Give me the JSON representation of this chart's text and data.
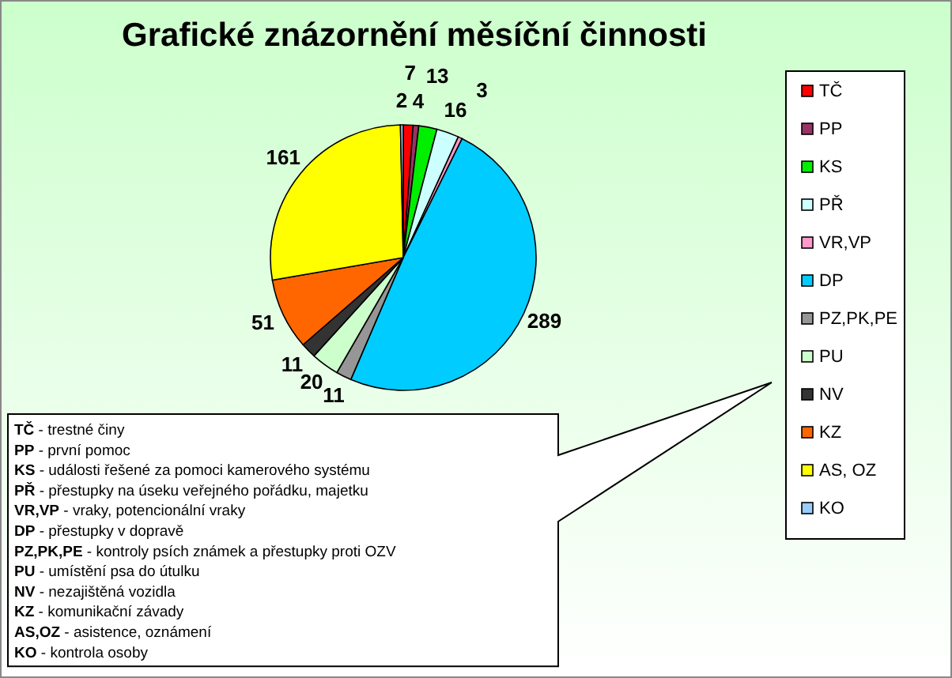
{
  "chart_data": {
    "type": "pie",
    "title": "Grafické znázornění měsíční činnosti",
    "categories": [
      "TČ",
      "PP",
      "KS",
      "PŘ",
      "VR,VP",
      "DP",
      "PZ,PK,PE",
      "PU",
      "NV",
      "KZ",
      "AS, OZ",
      "KO"
    ],
    "values": [
      7,
      4,
      13,
      16,
      3,
      289,
      11,
      20,
      11,
      51,
      161,
      2
    ],
    "colors": [
      "#ff0000",
      "#993366",
      "#00ee00",
      "#ccffff",
      "#ff99cc",
      "#00ccff",
      "#969696",
      "#ccffcc",
      "#333333",
      "#ff6600",
      "#ffff00",
      "#99ccff"
    ],
    "data_labels": true,
    "legend": "right",
    "annotations": [
      "TČ - trestné činy",
      "PP - první pomoc",
      "KS - události řešené za pomoci kamerového systému",
      "PŘ - přestupky na úseku veřejného pořádku, majetku",
      "VR,VP - vraky, potencionální vraky",
      "DP - přestupky v dopravě",
      "PZ,PK,PE - kontroly psích známek a přestupky proti OZV",
      "PU - umístění psa do útulku",
      "NV - nezajištěná vozidla",
      "KZ - komunikační závady",
      "AS,OZ - asistence, oznámení",
      "KO - kontrola osoby"
    ]
  }
}
